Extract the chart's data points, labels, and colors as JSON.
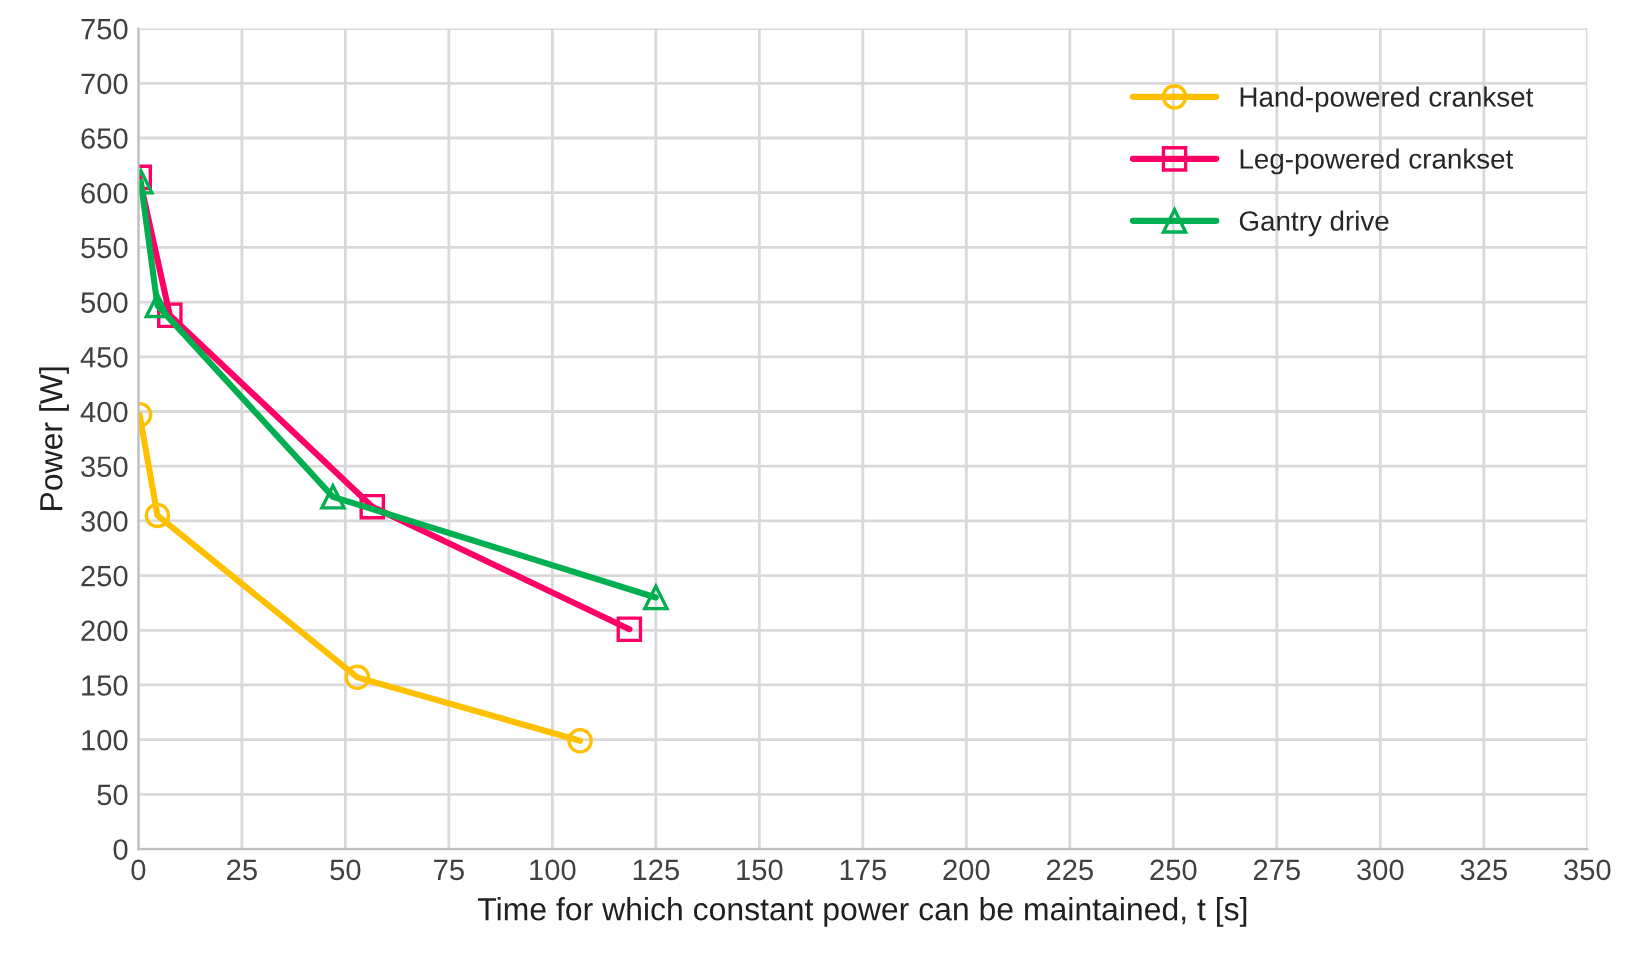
{
  "chart_data": {
    "type": "line",
    "xlabel": "Time for which constant power can be maintained, t [s]",
    "ylabel": "Power [W]",
    "xlim": [
      0,
      350
    ],
    "xticks": [
      0,
      25,
      50,
      75,
      100,
      125,
      150,
      175,
      200,
      225,
      250,
      275,
      300,
      325,
      350
    ],
    "ylim": [
      0,
      750
    ],
    "yticks": [
      0,
      50,
      100,
      150,
      200,
      250,
      300,
      350,
      400,
      450,
      500,
      550,
      600,
      650,
      700,
      750
    ],
    "grid": true,
    "legend": "top right",
    "series": [
      {
        "name": "Hand-powered crankset",
        "color": "#ffc000",
        "marker": "circle",
        "x": [
          0.3,
          4.6,
          52.9,
          106.7
        ],
        "values": [
          397,
          305,
          157,
          99
        ]
      },
      {
        "name": "Leg-powered crankset",
        "color": "#ff0066",
        "marker": "square",
        "x": [
          0.2,
          7.6,
          56.5,
          118.6
        ],
        "values": [
          614,
          488,
          313,
          201
        ]
      },
      {
        "name": "Gantry drive",
        "color": "#00b050",
        "marker": "triangle",
        "x": [
          0.6,
          4.6,
          47,
          125
        ],
        "values": [
          610,
          497,
          322,
          230
        ]
      }
    ]
  }
}
